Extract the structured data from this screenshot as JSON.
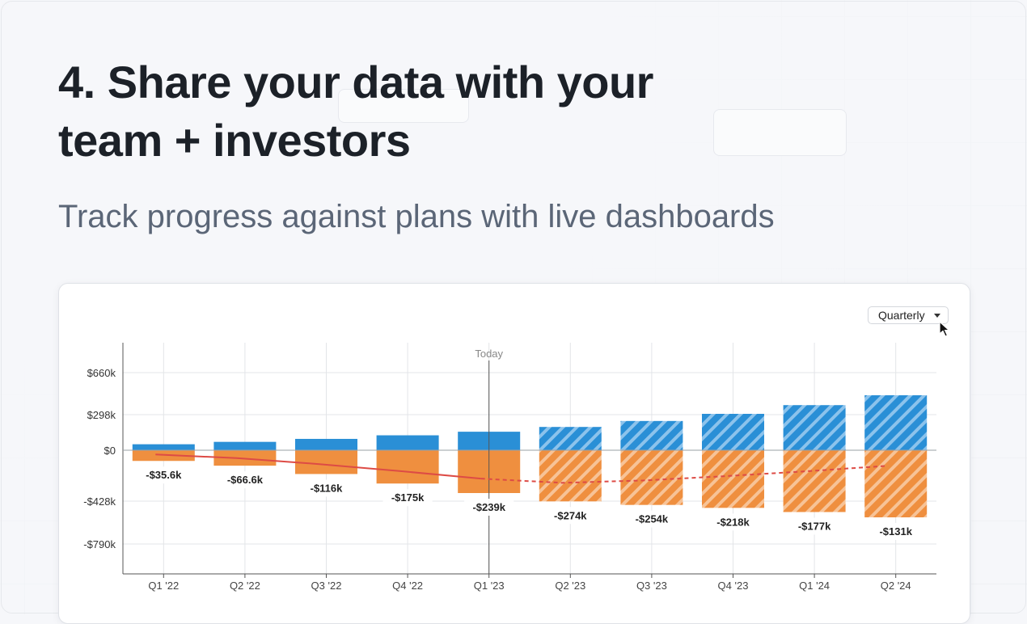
{
  "heading": {
    "line1": "4. Share your data with your",
    "line2": "team + investors",
    "subtitle": "Track progress against plans with live dashboards"
  },
  "controls": {
    "period_label": "Quarterly"
  },
  "chart_data": {
    "type": "bar",
    "categories": [
      "Q1 '22",
      "Q2 '22",
      "Q3 '22",
      "Q4 '22",
      "Q1 '23",
      "Q2 '23",
      "Q3 '23",
      "Q4 '23",
      "Q1 '24",
      "Q2 '24"
    ],
    "today_label": "Today",
    "today_index": 4,
    "series": [
      {
        "values": [
          50000,
          70000,
          95000,
          125000,
          155000,
          195000,
          245000,
          305000,
          380000,
          465000
        ],
        "forecast_from_index": 5
      },
      {
        "values": [
          -90000,
          -130000,
          -200000,
          -280000,
          -360000,
          -430000,
          -460000,
          -485000,
          -520000,
          -565000
        ],
        "forecast_from_index": 5
      }
    ],
    "line_series": {
      "values": [
        -35600,
        -66600,
        -116000,
        -175000,
        -239000,
        -274000,
        -254000,
        -218000,
        -177000,
        -131000
      ],
      "labels": [
        "-$35.6k",
        "-$66.6k",
        "-$116k",
        "-$175k",
        "-$239k",
        "-$274k",
        "-$254k",
        "-$218k",
        "-$177k",
        "-$131k"
      ],
      "forecast_from_index": 4
    },
    "y_ticks": [
      {
        "value": 660000,
        "label": "$660k"
      },
      {
        "value": 298000,
        "label": "$298k"
      },
      {
        "value": 0,
        "label": "$0"
      },
      {
        "value": -428000,
        "label": "-$428k"
      },
      {
        "value": -790000,
        "label": "-$790k"
      }
    ],
    "ylim": [
      -880000,
      900000
    ],
    "grid": true,
    "colors": {
      "positive": "#2a8fd6",
      "negative": "#ef8f3f",
      "line": "#dd4b45"
    }
  }
}
